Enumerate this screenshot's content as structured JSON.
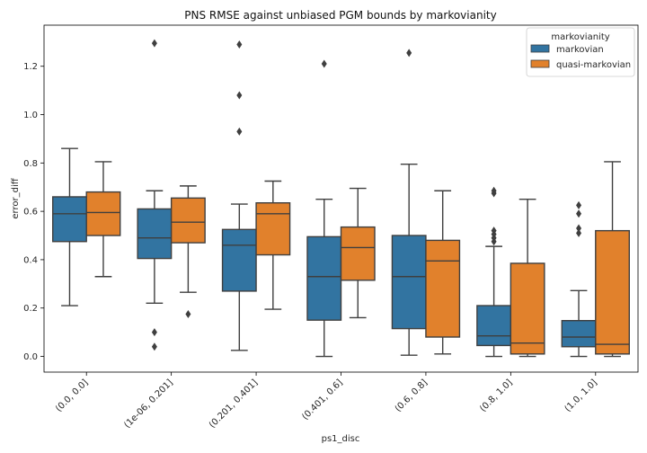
{
  "chart_data": {
    "type": "box",
    "title": "PNS RMSE against unbiased PGM bounds by markovianity",
    "xlabel": "ps1_disc",
    "ylabel": "error_diff",
    "ylim": [
      -0.065,
      1.37
    ],
    "yticks": [
      0.0,
      0.2,
      0.4,
      0.6,
      0.8,
      1.0,
      1.2
    ],
    "ytick_labels": [
      "0.0",
      "0.2",
      "0.4",
      "0.6",
      "0.8",
      "1.0",
      "1.2"
    ],
    "grid": false,
    "legend": {
      "title": "markovianity",
      "placement": "top-right",
      "entries": [
        "markovian",
        "quasi-markovian"
      ]
    },
    "categories": [
      "(0.0, 0.0]",
      "(1e-06, 0.201]",
      "(0.201, 0.401]",
      "(0.401, 0.6]",
      "(0.6, 0.8]",
      "(0.8, 1.0]",
      "(1.0, 1.0]"
    ],
    "series": [
      {
        "name": "markovian",
        "color": "#3274a1",
        "boxes": [
          {
            "whislo": 0.21,
            "q1": 0.475,
            "med": 0.59,
            "q3": 0.66,
            "whishi": 0.86,
            "fliers": []
          },
          {
            "whislo": 0.22,
            "q1": 0.405,
            "med": 0.49,
            "q3": 0.61,
            "whishi": 0.685,
            "fliers": [
              0.04,
              0.1,
              1.295
            ]
          },
          {
            "whislo": 0.025,
            "q1": 0.27,
            "med": 0.46,
            "q3": 0.525,
            "whishi": 0.63,
            "fliers": [
              0.93,
              1.08,
              1.29
            ]
          },
          {
            "whislo": 0.0,
            "q1": 0.15,
            "med": 0.33,
            "q3": 0.495,
            "whishi": 0.65,
            "fliers": [
              1.21
            ]
          },
          {
            "whislo": 0.005,
            "q1": 0.115,
            "med": 0.33,
            "q3": 0.5,
            "whishi": 0.795,
            "fliers": [
              1.255
            ]
          },
          {
            "whislo": 0.0,
            "q1": 0.045,
            "med": 0.085,
            "q3": 0.21,
            "whishi": 0.455,
            "fliers": [
              0.475,
              0.49,
              0.505,
              0.52,
              0.675,
              0.685
            ]
          },
          {
            "whislo": 0.0,
            "q1": 0.04,
            "med": 0.08,
            "q3": 0.148,
            "whishi": 0.272,
            "fliers": [
              0.51,
              0.53,
              0.59,
              0.625
            ]
          }
        ]
      },
      {
        "name": "quasi-markovian",
        "color": "#e1812c",
        "boxes": [
          {
            "whislo": 0.33,
            "q1": 0.5,
            "med": 0.595,
            "q3": 0.68,
            "whishi": 0.805,
            "fliers": []
          },
          {
            "whislo": 0.265,
            "q1": 0.47,
            "med": 0.555,
            "q3": 0.655,
            "whishi": 0.705,
            "fliers": [
              0.175
            ]
          },
          {
            "whislo": 0.195,
            "q1": 0.42,
            "med": 0.59,
            "q3": 0.635,
            "whishi": 0.725,
            "fliers": []
          },
          {
            "whislo": 0.16,
            "q1": 0.315,
            "med": 0.45,
            "q3": 0.535,
            "whishi": 0.695,
            "fliers": []
          },
          {
            "whislo": 0.01,
            "q1": 0.08,
            "med": 0.395,
            "q3": 0.48,
            "whishi": 0.685,
            "fliers": []
          },
          {
            "whislo": 0.0,
            "q1": 0.01,
            "med": 0.055,
            "q3": 0.385,
            "whishi": 0.65,
            "fliers": []
          },
          {
            "whislo": 0.0,
            "q1": 0.01,
            "med": 0.05,
            "q3": 0.52,
            "whishi": 0.805,
            "fliers": []
          }
        ]
      }
    ]
  }
}
